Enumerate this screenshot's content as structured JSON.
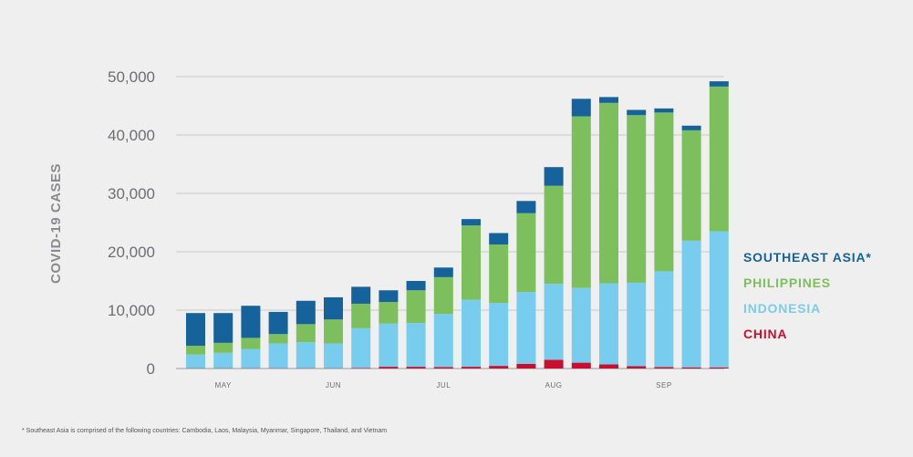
{
  "chart_data": {
    "type": "bar",
    "stacked": true,
    "ylabel": "COVID-19 CASES",
    "xlabel": "",
    "ylim": [
      0,
      50000
    ],
    "yticks": [
      {
        "value": 0,
        "label": "0"
      },
      {
        "value": 10000,
        "label": "10,000"
      },
      {
        "value": 20000,
        "label": "20,000"
      },
      {
        "value": 30000,
        "label": "30,000"
      },
      {
        "value": 40000,
        "label": "40,000"
      },
      {
        "value": 50000,
        "label": "50,000"
      }
    ],
    "month_ticks": [
      {
        "label": "MAY",
        "index": 1
      },
      {
        "label": "JUN",
        "index": 5
      },
      {
        "label": "JUL",
        "index": 9
      },
      {
        "label": "AUG",
        "index": 13
      },
      {
        "label": "SEP",
        "index": 17
      }
    ],
    "grid": true,
    "legend_position": "right",
    "series": [
      {
        "name": "CHINA",
        "color": "#c8102e",
        "values": [
          50,
          50,
          50,
          50,
          50,
          50,
          100,
          300,
          300,
          250,
          300,
          450,
          800,
          1500,
          1000,
          700,
          400,
          250,
          200,
          200
        ]
      },
      {
        "name": "INDONESIA",
        "color": "#78cdee",
        "values": [
          2350,
          2650,
          3300,
          4250,
          4450,
          4250,
          6800,
          7400,
          7500,
          9100,
          11500,
          10800,
          12300,
          13000,
          12800,
          13900,
          14300,
          16400,
          21700,
          23300
        ]
      },
      {
        "name": "PHILIPPINES",
        "color": "#7dbf5c",
        "values": [
          1500,
          1700,
          1900,
          1600,
          3100,
          4100,
          4200,
          3700,
          5600,
          6300,
          12700,
          10000,
          13500,
          16800,
          29400,
          30900,
          28700,
          27200,
          18900,
          24800
        ]
      },
      {
        "name": "SOUTHEAST ASIA*",
        "color": "#16629b",
        "values": [
          5600,
          5100,
          5500,
          3800,
          4000,
          3800,
          2900,
          2000,
          1600,
          1650,
          1100,
          1950,
          2100,
          3200,
          3000,
          1000,
          900,
          700,
          800,
          900
        ]
      }
    ]
  },
  "legend_order": [
    "SOUTHEAST ASIA*",
    "PHILIPPINES",
    "INDONESIA",
    "CHINA"
  ],
  "footnote": "* Southeast Asia is comprised of the following countries: Cambodia, Laos, Malaysia, Myanmar, Singapore, Thailand, and Vietnam"
}
